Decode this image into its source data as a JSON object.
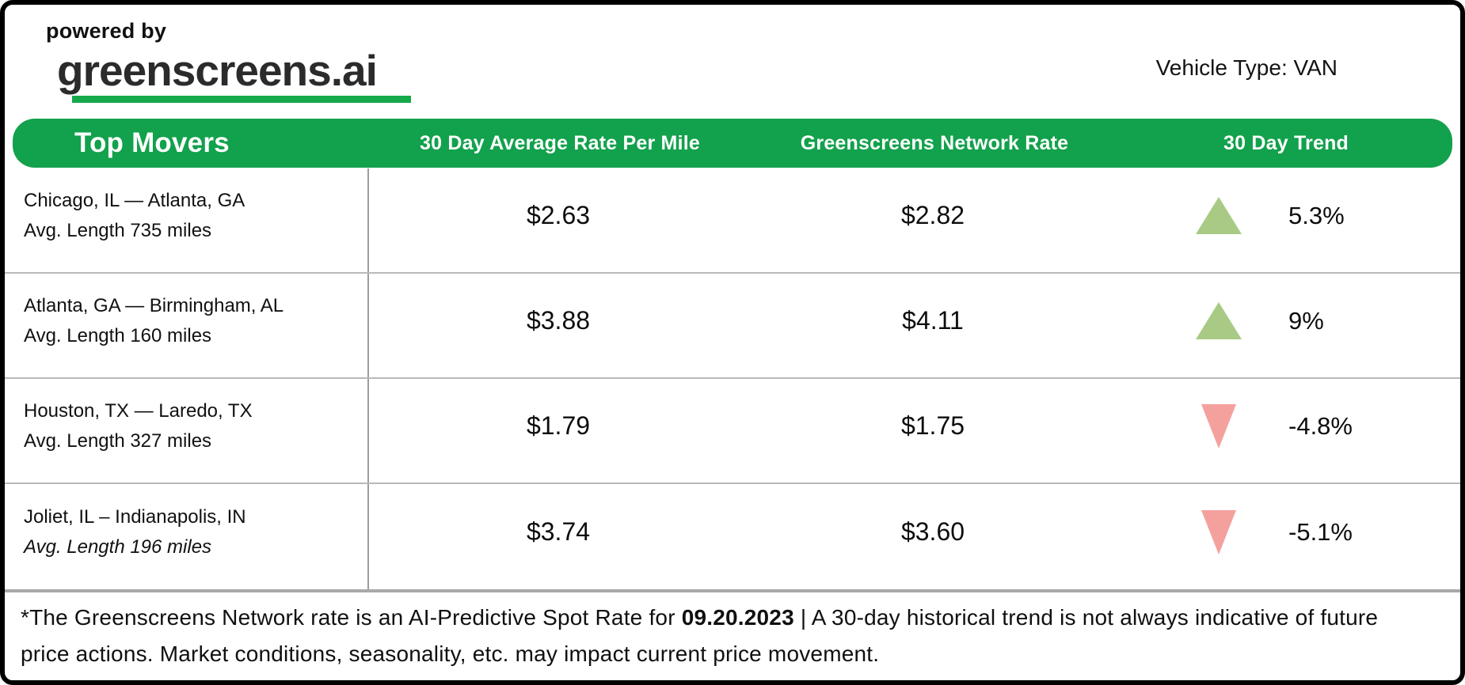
{
  "branding": {
    "powered_by": "powered by",
    "logo_text": "greenscreens.ai"
  },
  "vehicle_type": "Vehicle Type: VAN",
  "table": {
    "headers": {
      "top_movers": "Top Movers",
      "avg_rate": "30 Day Average Rate Per Mile",
      "network_rate": "Greenscreens Network Rate",
      "trend": "30 Day Trend"
    },
    "rows": [
      {
        "lane": "Chicago, IL — Atlanta, GA",
        "avg_length": "Avg. Length 735 miles",
        "avg_rate": "$2.63",
        "network_rate": "$2.82",
        "trend_direction": "up",
        "trend_value": "5.3%"
      },
      {
        "lane": "Atlanta, GA — Birmingham, AL",
        "avg_length": "Avg. Length 160 miles",
        "avg_rate": "$3.88",
        "network_rate": "$4.11",
        "trend_direction": "up",
        "trend_value": "9%"
      },
      {
        "lane": "Houston, TX — Laredo, TX",
        "avg_length": "Avg. Length 327 miles",
        "avg_rate": "$1.79",
        "network_rate": "$1.75",
        "trend_direction": "down",
        "trend_value": "-4.8%"
      },
      {
        "lane": "Joliet, IL – Indianapolis, IN",
        "avg_length": "Avg. Length 196 miles",
        "avg_rate": "$3.74",
        "network_rate": "$3.60",
        "trend_direction": "down",
        "trend_value": "-5.1%"
      }
    ]
  },
  "footer": {
    "prefix": "*The Greenscreens Network rate is an AI-Predictive Spot Rate for ",
    "date": "09.20.2023",
    "suffix": " | A 30-day historical trend is not always indicative of future price actions. Market conditions, seasonality, etc. may impact current price movement."
  },
  "colors": {
    "header_green": "#12A14C",
    "underline_green": "#15A94C",
    "up_triangle": "#A8CA84",
    "down_triangle": "#F4A19E",
    "row_divider": "#B9B9B9",
    "column_divider": "#9C9C9C",
    "text": "#161616"
  }
}
